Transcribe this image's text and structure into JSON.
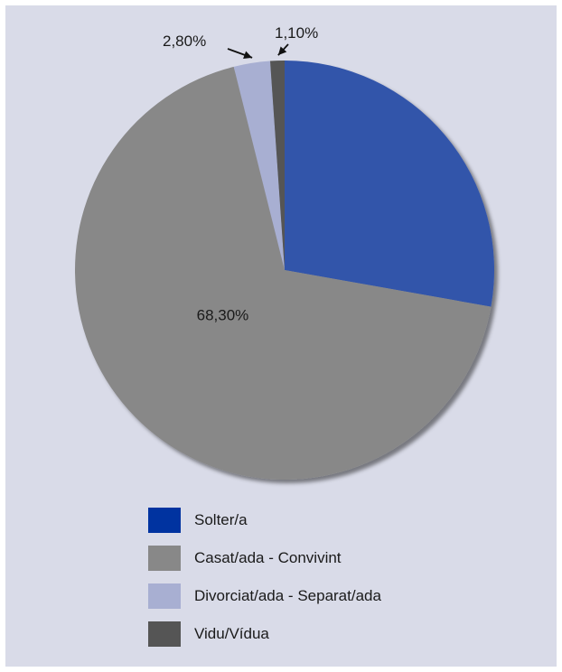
{
  "chart_data": {
    "type": "pie",
    "title": "",
    "slices": [
      {
        "name": "Solter/a",
        "value": 27.8,
        "color": "#3355aa",
        "legend_color": "#0033a0",
        "label": ""
      },
      {
        "name": "Casat/ada - Convivint",
        "value": 68.3,
        "color": "#888888",
        "legend_color": "#888888",
        "label": "68,30%"
      },
      {
        "name": "Divorciat/ada - Separat/ada",
        "value": 2.8,
        "color": "#a8afd2",
        "legend_color": "#a8afd2",
        "label": "2,80%"
      },
      {
        "name": "Vidu/Vídua",
        "value": 1.1,
        "color": "#555555",
        "legend_color": "#555555",
        "label": "1,10%"
      }
    ],
    "start_angle_deg": 0,
    "direction": "clockwise",
    "legend_position": "bottom"
  }
}
